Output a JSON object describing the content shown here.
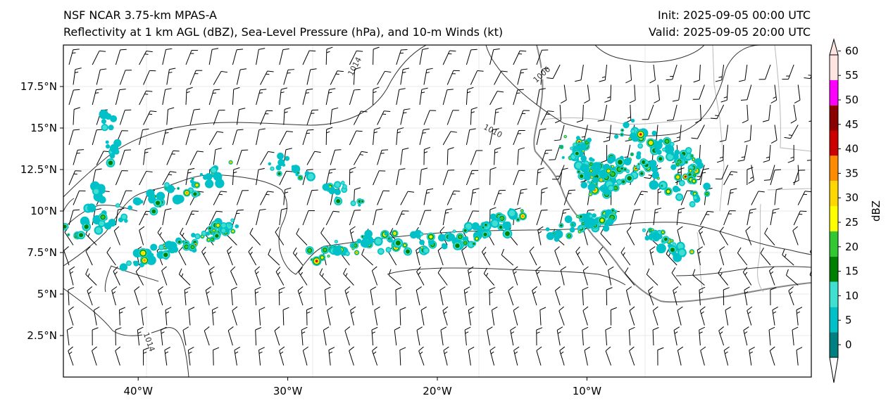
{
  "title": {
    "model": "NSF NCAR 3.75-km MPAS-A",
    "fields": "Reflectivity at 1 km AGL (dBZ), Sea-Level Pressure (hPa), and 10-m Winds (kt)",
    "init": "Init: 2025-09-05 00:00 UTC",
    "valid": "Valid: 2025-09-05 20:00 UTC"
  },
  "axes": {
    "lon_labels": [
      {
        "text": "40°W",
        "lon": -40
      },
      {
        "text": "30°W",
        "lon": -30
      },
      {
        "text": "20°W",
        "lon": -20
      },
      {
        "text": "10°W",
        "lon": -10
      }
    ],
    "lat_labels": [
      {
        "text": "17.5°N",
        "lat": 17.5
      },
      {
        "text": "15°N",
        "lat": 15
      },
      {
        "text": "12.5°N",
        "lat": 12.5
      },
      {
        "text": "10°N",
        "lat": 10
      },
      {
        "text": "7.5°N",
        "lat": 7.5
      },
      {
        "text": "5°N",
        "lat": 5
      },
      {
        "text": "2.5°N",
        "lat": 2.5
      }
    ],
    "lon_range": [
      -45,
      5
    ],
    "lat_range": [
      0,
      20
    ]
  },
  "isobar_labels": [
    {
      "text": "1014",
      "lon": -25.5,
      "lat": 18.7
    },
    {
      "text": "1006",
      "lon": -13,
      "lat": 18.2
    },
    {
      "text": "1010",
      "lon": -16.3,
      "lat": 14.8
    },
    {
      "text": "1014",
      "lon": -39.3,
      "lat": 2.1
    }
  ],
  "colorbar": {
    "label": "dBZ",
    "ticks": [
      "0",
      "5",
      "10",
      "15",
      "20",
      "25",
      "30",
      "35",
      "40",
      "45",
      "50",
      "55",
      "60"
    ],
    "colors": [
      "#008080",
      "#00c0c8",
      "#40e0d0",
      "#008000",
      "#32c832",
      "#ffff00",
      "#ffd700",
      "#ff8c00",
      "#cc0000",
      "#8b0000",
      "#ff00ff",
      "#ffe4e1"
    ]
  }
}
